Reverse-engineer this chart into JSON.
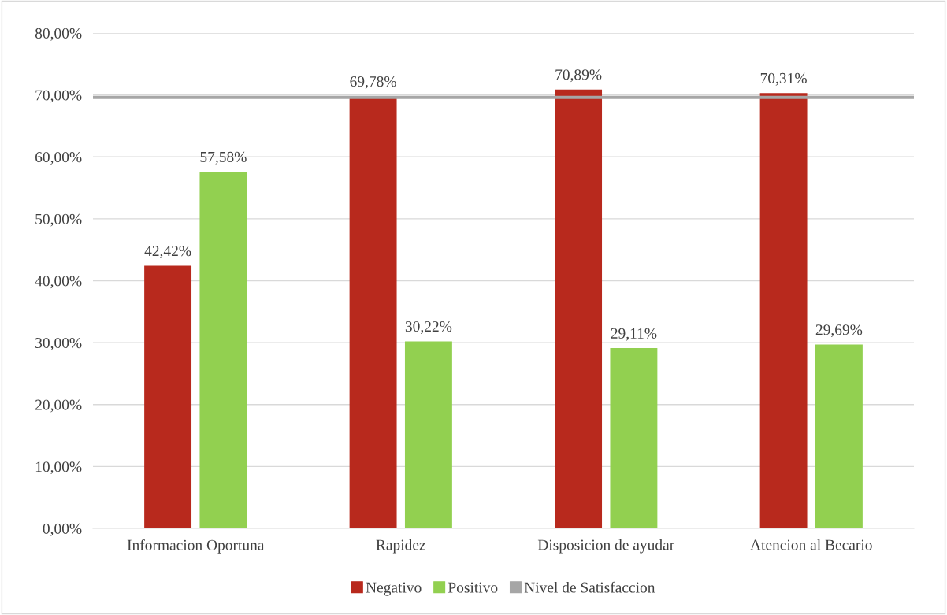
{
  "chart_data": {
    "type": "bar",
    "categories": [
      "Informacion Oportuna",
      "Rapidez",
      "Disposicion de ayudar",
      "Atencion al Becario"
    ],
    "series": [
      {
        "name": "Negativo",
        "color": "#b8291d",
        "values": [
          42.42,
          69.78,
          70.89,
          70.31
        ],
        "value_labels": [
          "42,42%",
          "69,78%",
          "70,89%",
          "70,31%"
        ]
      },
      {
        "name": "Positivo",
        "color": "#92d050",
        "values": [
          57.58,
          30.22,
          29.11,
          29.69
        ],
        "value_labels": [
          "57,58%",
          "30,22%",
          "29,11%",
          "29,69%"
        ]
      }
    ],
    "ref_lines": [
      {
        "axis": "y",
        "value": 69.6,
        "label": "Nivel de Satisfaccion",
        "color": "#a6a6a6",
        "line_style": "solid"
      }
    ],
    "ylim": [
      0,
      80
    ],
    "yticks": [
      {
        "value": 0,
        "label": "0,00%"
      },
      {
        "value": 10,
        "label": "10,00%"
      },
      {
        "value": 20,
        "label": "20,00%"
      },
      {
        "value": 30,
        "label": "30,00%"
      },
      {
        "value": 40,
        "label": "40,00%"
      },
      {
        "value": 50,
        "label": "50,00%"
      },
      {
        "value": 60,
        "label": "60,00%"
      },
      {
        "value": 70,
        "label": "70,00%"
      },
      {
        "value": 80,
        "label": "80,00%"
      }
    ],
    "grid": "y",
    "legend": "bottom"
  }
}
